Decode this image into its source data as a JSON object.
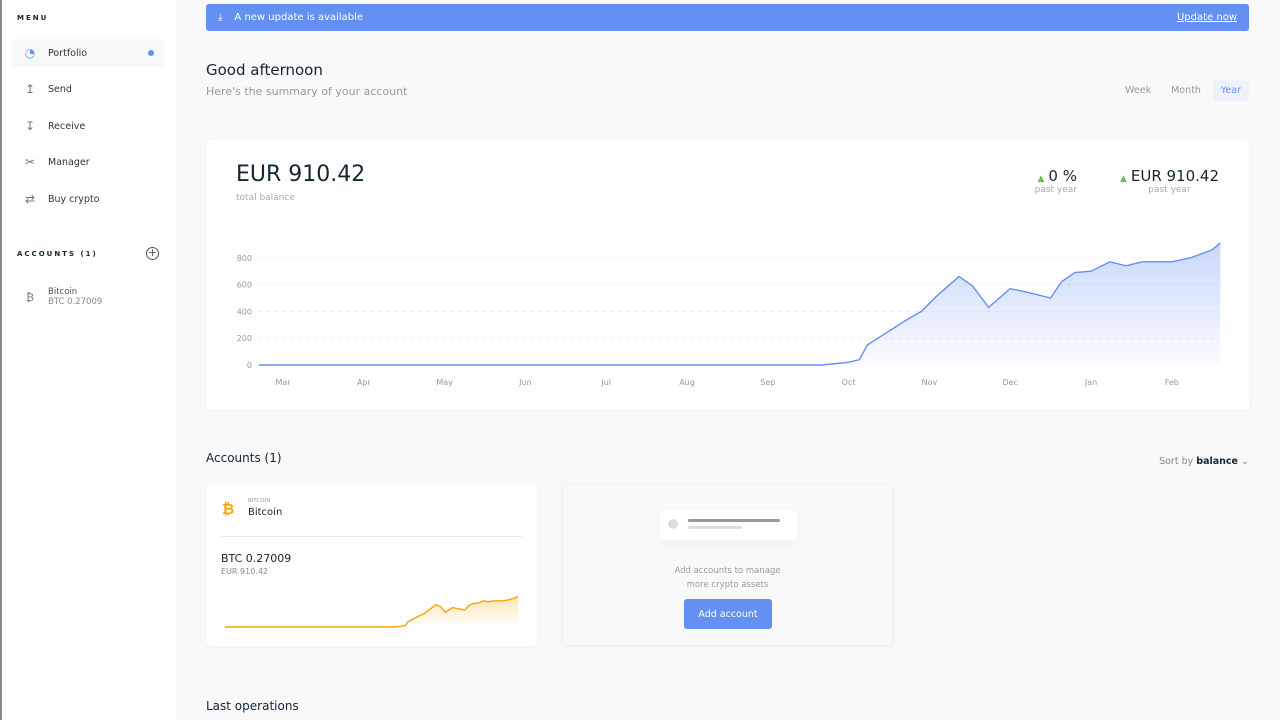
{
  "sidebar": {
    "menu_title": "MENU",
    "items": [
      {
        "label": "Portfolio",
        "icon": "pie-chart-icon"
      },
      {
        "label": "Send",
        "icon": "arrow-up-icon"
      },
      {
        "label": "Receive",
        "icon": "arrow-down-icon"
      },
      {
        "label": "Manager",
        "icon": "tools-icon"
      },
      {
        "label": "Buy crypto",
        "icon": "exchange-icon"
      }
    ],
    "accounts_title": "ACCOUNTS (1)",
    "accounts": [
      {
        "name": "Bitcoin",
        "balance": "BTC 0.27009"
      }
    ]
  },
  "banner": {
    "text": "A new update is available",
    "action": "Update now",
    "color": "#6490f1"
  },
  "header": {
    "title": "Good afternoon",
    "subtitle": "Here's the summary of your account",
    "ranges": [
      "Week",
      "Month",
      "Year"
    ],
    "selected_range": "Year"
  },
  "summary": {
    "balance": "EUR 910.42",
    "balance_label": "total balance",
    "change_pct": "0 %",
    "change_pct_label": "past year",
    "change_value": "EUR 910.42",
    "change_value_label": "past year"
  },
  "chart_data": {
    "type": "area",
    "color": "#6490f1",
    "x_ticks": [
      "Mar",
      "Apr",
      "May",
      "Jun",
      "Jul",
      "Aug",
      "Sep",
      "Oct",
      "Nov",
      "Dec",
      "Jan",
      "Feb"
    ],
    "y_ticks": [
      0,
      200,
      400,
      600,
      800
    ],
    "ylim": [
      0,
      950
    ],
    "grid": true,
    "points": [
      [
        "03-01",
        0
      ],
      [
        "09-21",
        0
      ],
      [
        "10-01",
        20
      ],
      [
        "10-05",
        40
      ],
      [
        "10-08",
        150
      ],
      [
        "10-15",
        240
      ],
      [
        "10-22",
        330
      ],
      [
        "10-28",
        400
      ],
      [
        "11-04",
        520
      ],
      [
        "11-12",
        660
      ],
      [
        "11-17",
        590
      ],
      [
        "11-23",
        430
      ],
      [
        "11-27",
        500
      ],
      [
        "12-01",
        570
      ],
      [
        "12-08",
        540
      ],
      [
        "12-16",
        500
      ],
      [
        "12-20",
        620
      ],
      [
        "12-25",
        690
      ],
      [
        "01-01",
        700
      ],
      [
        "01-08",
        770
      ],
      [
        "01-14",
        740
      ],
      [
        "01-20",
        770
      ],
      [
        "02-01",
        770
      ],
      [
        "02-08",
        800
      ],
      [
        "02-16",
        860
      ],
      [
        "02-19",
        910
      ]
    ]
  },
  "accounts_section": {
    "title": "Accounts (1)",
    "sort_label": "Sort by",
    "sort_value": "balance",
    "cards": [
      {
        "ticker_label": "BITCOIN",
        "name": "Bitcoin",
        "balance": "BTC 0.27009",
        "fiat": "EUR 910.42",
        "color": "#f7a600"
      }
    ],
    "add_text_1": "Add accounts to manage",
    "add_text_2": "more crypto assets",
    "add_button": "Add account"
  },
  "last_operations": {
    "title": "Last operations"
  }
}
